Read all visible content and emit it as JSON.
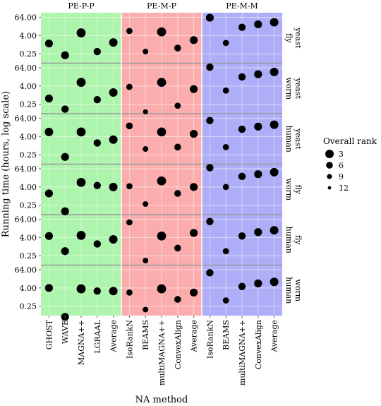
{
  "chart_data": {
    "type": "scatter",
    "xlabel": "NA method",
    "ylabel": "Running time (hours, log scale)",
    "y_scale": "log2",
    "yticks": [
      0.25,
      4.0,
      64.0
    ],
    "ytick_labels": [
      "0.25",
      "4.00",
      "64.00"
    ],
    "ylim": [
      0.06,
      128
    ],
    "grid": true,
    "legend": {
      "title": "Overall rank",
      "placement": "right",
      "entries": [
        {
          "label": "3",
          "rank": 3
        },
        {
          "label": "6",
          "rank": 6
        },
        {
          "label": "9",
          "rank": 9
        },
        {
          "label": "12",
          "rank": 12
        }
      ]
    },
    "column_groups": [
      {
        "label": "PE-P-P",
        "color": "#adf4ac",
        "methods": [
          "GHOST",
          "WAVE",
          "MAGNA++",
          "LGRAAL",
          "Average"
        ]
      },
      {
        "label": "PE-M-P",
        "color": "#fbadad",
        "methods": [
          "IsoRankN",
          "BEAMS",
          "multiMAGNA++",
          "ConvexAlign",
          "Average"
        ]
      },
      {
        "label": "PE-M-M",
        "color": "#adaef7",
        "methods": [
          "IsoRankN",
          "BEAMS",
          "multiMAGNA++",
          "ConvexAlign",
          "Average"
        ]
      }
    ],
    "rows": [
      {
        "label_top": "yeast",
        "label_bottom": "fly",
        "values": [
          [
            1.2,
            0.2,
            6.0,
            0.35,
            1.4
          ],
          [
            8.0,
            0.35,
            7.0,
            0.6,
            2.0
          ],
          [
            60.0,
            1.3,
            14.0,
            22.0,
            30.0
          ]
        ],
        "ranks": [
          [
            4,
            4,
            2,
            5,
            3
          ],
          [
            7,
            8,
            2,
            6,
            4
          ],
          [
            4,
            7,
            5,
            4,
            3
          ]
        ]
      },
      {
        "label_top": "yeast",
        "label_bottom": "worm",
        "values": [
          [
            0.6,
            0.12,
            7.0,
            0.5,
            1.5
          ],
          [
            3.5,
            0.08,
            7.0,
            0.2,
            2.5
          ],
          [
            70.0,
            2.0,
            16.0,
            24.0,
            34.0
          ]
        ],
        "ranks": [
          [
            4,
            5,
            2,
            5,
            3
          ],
          [
            7,
            9,
            2,
            7,
            4
          ],
          [
            5,
            7,
            5,
            4,
            3
          ]
        ]
      },
      {
        "label_top": "yeast",
        "label_bottom": "human",
        "values": [
          [
            8.0,
            0.18,
            8.0,
            1.5,
            2.5
          ],
          [
            20.0,
            0.6,
            8.0,
            0.8,
            6.0
          ],
          [
            45.0,
            0.8,
            12.0,
            18.0,
            24.0
          ]
        ],
        "ranks": [
          [
            3,
            4,
            2,
            5,
            3
          ],
          [
            6,
            8,
            2,
            6,
            4
          ],
          [
            5,
            7,
            5,
            4,
            3
          ]
        ]
      },
      {
        "label_top": "fly",
        "label_bottom": "worm",
        "values": [
          [
            1.5,
            0.1,
            8.0,
            5.0,
            4.0
          ],
          [
            4.5,
            0.3,
            10.0,
            1.5,
            4.0
          ],
          [
            75.0,
            4.0,
            20.0,
            28.0,
            38.0
          ]
        ],
        "ranks": [
          [
            4,
            4,
            2,
            5,
            3
          ],
          [
            7,
            8,
            2,
            6,
            4
          ],
          [
            5,
            7,
            5,
            4,
            3
          ]
        ]
      },
      {
        "label_top": "fly",
        "label_bottom": "human",
        "values": [
          [
            5.0,
            0.5,
            5.5,
            1.5,
            3.0
          ],
          [
            40.0,
            0.12,
            5.0,
            0.8,
            8.0
          ],
          [
            45.0,
            0.5,
            5.0,
            9.0,
            12.0
          ]
        ],
        "ranks": [
          [
            4,
            4,
            2,
            5,
            3
          ],
          [
            7,
            8,
            2,
            6,
            4
          ],
          [
            5,
            7,
            5,
            4,
            3
          ]
        ]
      },
      {
        "label_top": "worm",
        "label_bottom": "human",
        "values": [
          [
            4.0,
            0.05,
            3.5,
            2.5,
            2.5
          ],
          [
            2.0,
            0.15,
            3.5,
            0.7,
            2.0
          ],
          [
            40.0,
            0.6,
            5.0,
            8.0,
            10.0
          ]
        ],
        "ranks": [
          [
            4,
            4,
            2,
            5,
            3
          ],
          [
            7,
            8,
            2,
            6,
            4
          ],
          [
            5,
            7,
            5,
            4,
            3
          ]
        ]
      }
    ]
  }
}
